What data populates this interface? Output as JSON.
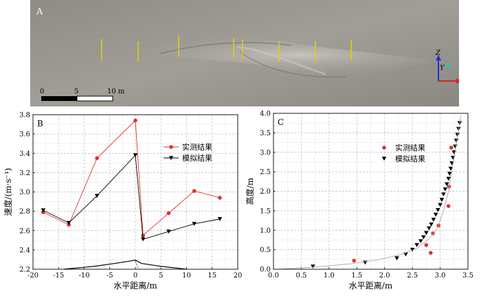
{
  "panel_a": {
    "label": "A",
    "scale": {
      "t0": "0",
      "t1": "5",
      "t2": "10 m"
    },
    "axes": {
      "z": "Z",
      "y": "Y",
      "x": "X"
    }
  },
  "chart_data": [
    {
      "type": "line",
      "panel_label": "B",
      "xlabel": "水平距离/m",
      "ylabel": "速度/(m·s⁻¹)",
      "xlim": [
        -20,
        20
      ],
      "ylim": [
        2.2,
        3.8
      ],
      "xticks": [
        "-20",
        "-15",
        "-10",
        "-5",
        "0",
        "5",
        "10",
        "15",
        "20"
      ],
      "yticks": [
        "2.2",
        "2.4",
        "2.6",
        "2.8",
        "3.0",
        "3.2",
        "3.4",
        "3.6",
        "3.8"
      ],
      "grid": true,
      "legend": "top-right",
      "series": [
        {
          "name": "实测结果",
          "color": "#e03030",
          "marker": "circle",
          "x": [
            -18,
            -13,
            -7.5,
            0,
            1.5,
            6.5,
            11.5,
            16.5
          ],
          "y": [
            2.79,
            2.66,
            3.35,
            3.74,
            2.55,
            2.78,
            3.01,
            2.94
          ]
        },
        {
          "name": "模拟结果",
          "color": "#000000",
          "marker": "triangle-down",
          "x": [
            -18,
            -13,
            -7.5,
            0,
            1.5,
            6.5,
            11.5,
            16.5
          ],
          "y": [
            2.81,
            2.68,
            2.96,
            3.38,
            2.51,
            2.59,
            2.67,
            2.72
          ]
        }
      ],
      "bed_profile": {
        "x": [
          -14,
          -8,
          -4,
          -1,
          0,
          1.2,
          5,
          10
        ],
        "y": [
          2.2,
          2.23,
          2.26,
          2.285,
          2.295,
          2.26,
          2.23,
          2.2
        ]
      }
    },
    {
      "type": "scatter",
      "panel_label": "C",
      "xlabel": "水平距离/m",
      "ylabel": "高度/m",
      "xlim": [
        0,
        3.5
      ],
      "ylim": [
        0,
        4.0
      ],
      "xticks": [
        "0.0",
        "0.5",
        "1.0",
        "1.5",
        "2.0",
        "2.5",
        "3.0",
        "3.5"
      ],
      "yticks": [
        "0.0",
        "0.5",
        "1.0",
        "1.5",
        "2.0",
        "2.5",
        "3.0",
        "3.5",
        "4.0"
      ],
      "grid": true,
      "legend": "center",
      "series": [
        {
          "name": "实测结果",
          "color": "#e03030",
          "marker": "circle",
          "x": [
            1.45,
            2.75,
            2.83,
            2.87,
            2.97,
            3.15,
            3.16,
            3.2
          ],
          "y": [
            0.22,
            0.62,
            0.42,
            0.92,
            1.12,
            1.62,
            2.12,
            3.12
          ]
        },
        {
          "name": "模拟结果",
          "color": "#000000",
          "marker": "triangle-down",
          "x": [
            0.71,
            1.65,
            2.22,
            2.38,
            2.5,
            2.58,
            2.65,
            2.7,
            2.75,
            2.8,
            2.84,
            2.88,
            2.92,
            2.96,
            3.0,
            3.03,
            3.06,
            3.09,
            3.12,
            3.15,
            3.17,
            3.19,
            3.21,
            3.23,
            3.25,
            3.27,
            3.29,
            3.31,
            3.33,
            3.35
          ],
          "y": [
            0.07,
            0.17,
            0.28,
            0.38,
            0.5,
            0.62,
            0.72,
            0.82,
            0.93,
            1.05,
            1.15,
            1.27,
            1.4,
            1.52,
            1.65,
            1.78,
            1.92,
            2.05,
            2.18,
            2.32,
            2.45,
            2.58,
            2.72,
            2.86,
            3.0,
            3.15,
            3.3,
            3.45,
            3.6,
            3.75
          ]
        },
        {
          "name": "",
          "color": "#aaaaaa",
          "marker": "none",
          "x": [
            0.1,
            0.8,
            1.4,
            1.9,
            2.3,
            2.6,
            2.8,
            2.95,
            3.05,
            3.15,
            3.22,
            3.3,
            3.37
          ],
          "y": [
            0.0,
            0.06,
            0.14,
            0.25,
            0.38,
            0.55,
            0.78,
            1.05,
            1.45,
            2.0,
            2.6,
            3.3,
            3.95
          ]
        }
      ]
    }
  ]
}
